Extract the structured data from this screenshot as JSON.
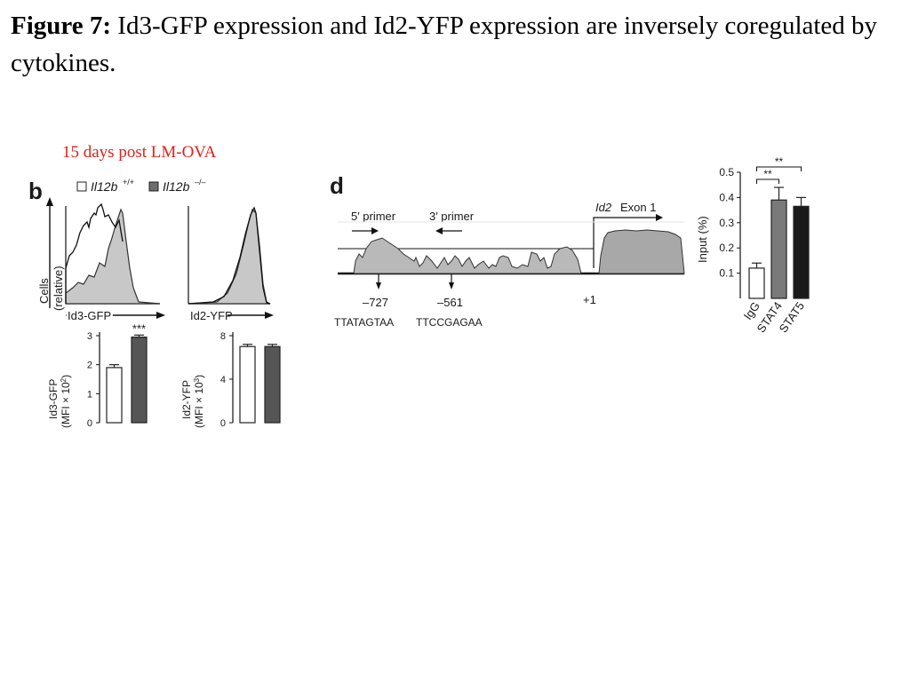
{
  "figure": {
    "label": "Figure 7:",
    "caption": "Id3-GFP expression and Id2-YFP expression are inversely coregulated by cytokines."
  },
  "subtitle": "15 days post LM-OVA",
  "panel_b": {
    "label": "b",
    "legend": [
      {
        "name": "Il12b",
        "sup": "+/+",
        "swatch": "#ffffff"
      },
      {
        "name": "Il12b",
        "sup": "–/–",
        "swatch": "#6d6d6d"
      }
    ],
    "hist_ylabel": "Cells",
    "hist_ylabel2": "(relative)",
    "hist_xlabel_left": "Id3-GFP",
    "hist_xlabel_right": "Id2-YFP"
  },
  "panel_d": {
    "label": "d",
    "primer5": "5′ primer",
    "primer3": "3′ primer",
    "gene": "Id2",
    "exon": "Exon 1",
    "pos1": "–727",
    "pos2": "–561",
    "pos3": "+1",
    "seq1": "TTATAGTAA",
    "seq2": "TTCCGAGAA"
  },
  "chart_data": [
    {
      "type": "bar",
      "panel": "b",
      "categories": [
        "Il12b+/+",
        "Il12b–/–"
      ],
      "values": [
        1.9,
        2.95
      ],
      "errors": [
        0.1,
        0.07
      ],
      "ylabel": "Id3-GFP",
      "ylabel2": "(MFI × 10",
      "ylabel_sup": "2",
      "ylabel_end": ")",
      "ylim": [
        0,
        3
      ],
      "yticks": [
        "0",
        "1",
        "2",
        "3"
      ],
      "significance": "***",
      "colors": [
        "#ffffff",
        "#555555"
      ]
    },
    {
      "type": "bar",
      "panel": "b",
      "categories": [
        "Il12b+/+",
        "Il12b–/–"
      ],
      "values": [
        7.0,
        7.0
      ],
      "errors": [
        0.2,
        0.2
      ],
      "ylabel": "Id2-YFP",
      "ylabel2": "(MFI × 10",
      "ylabel_sup": "3",
      "ylabel_end": ")",
      "ylim": [
        0,
        8
      ],
      "yticks": [
        "0",
        "4",
        "8"
      ],
      "colors": [
        "#ffffff",
        "#555555"
      ]
    },
    {
      "type": "bar",
      "panel": "d",
      "categories": [
        "IgG",
        "STAT4",
        "STAT5"
      ],
      "values": [
        0.12,
        0.39,
        0.365
      ],
      "errors": [
        0.02,
        0.05,
        0.035
      ],
      "ylabel": "Input (%)",
      "ylim": [
        0,
        0.5
      ],
      "yticks": [
        "0.1",
        "0.2",
        "0.3",
        "0.4",
        "0.5"
      ],
      "significance": [
        "**",
        "**"
      ],
      "colors": [
        "#ffffff",
        "#7a7a7a",
        "#1a1a1a"
      ]
    }
  ]
}
